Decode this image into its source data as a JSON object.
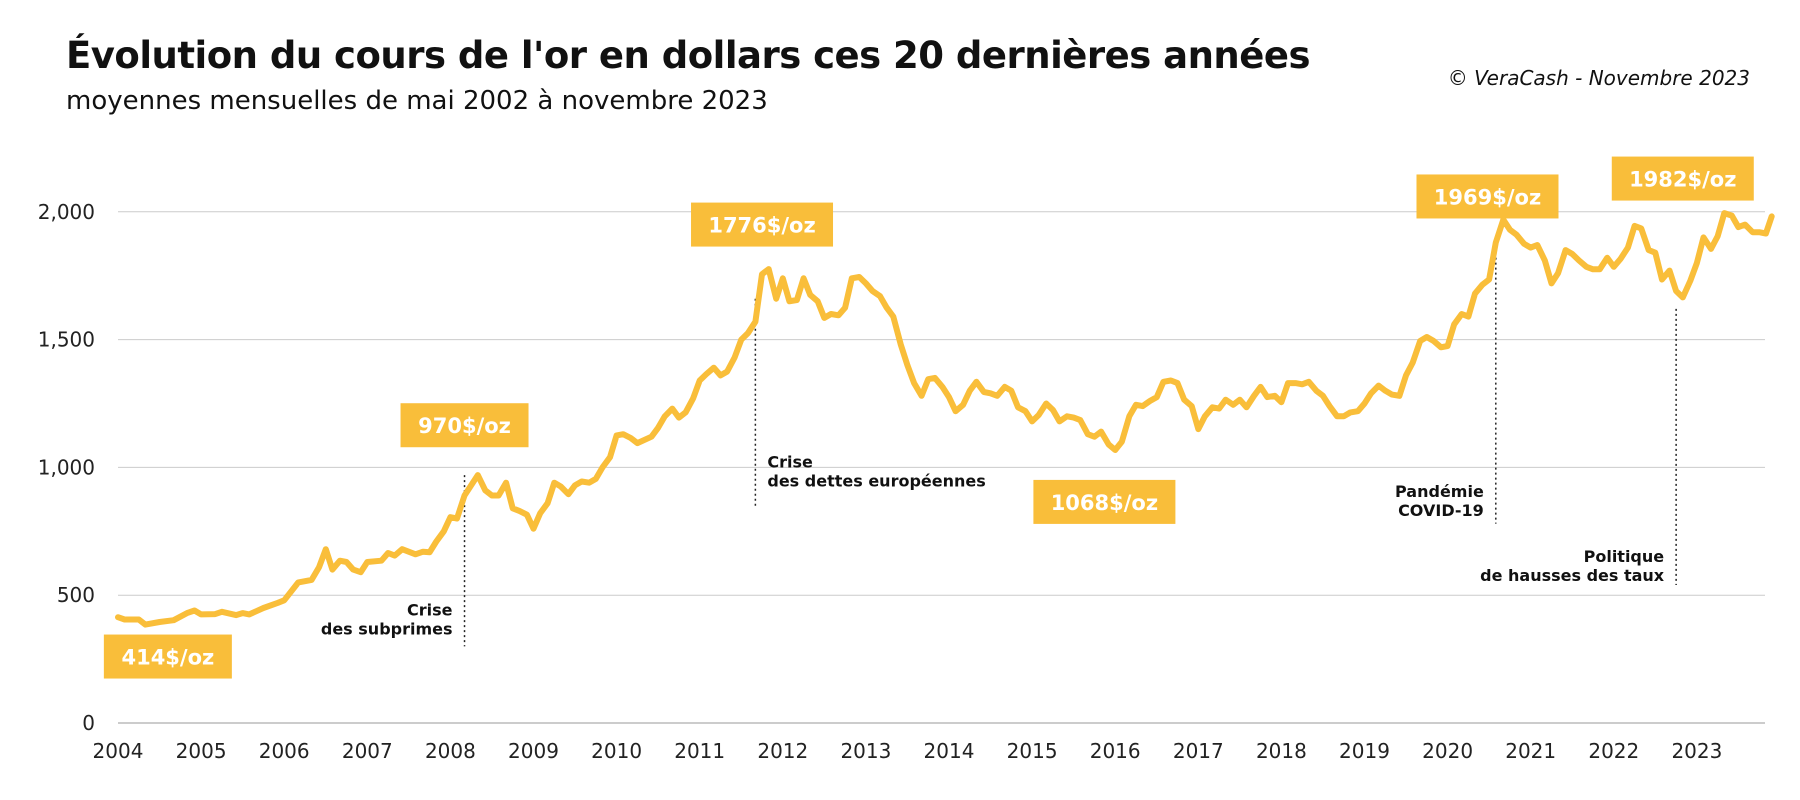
{
  "header": {
    "title": "Évolution du cours de l'or en dollars ces 20 dernières années",
    "subtitle": "moyennes mensuelles de mai 2002 à novembre 2023",
    "credit": "© VeraCash - Novembre 2023"
  },
  "colors": {
    "line": "#F9BE3A",
    "label_bg": "#F9BE3A",
    "grid": "#cccccc"
  },
  "chart_data": {
    "type": "line",
    "title": "Évolution du cours de l'or en dollars ces 20 dernières années",
    "subtitle": "moyennes mensuelles de mai 2002 à novembre 2023",
    "x_range": [
      2004.0,
      2023.9
    ],
    "ylim": [
      0,
      2100
    ],
    "y_ticks": [
      0,
      500,
      1000,
      1500,
      2000
    ],
    "y_tick_labels": [
      "0",
      "500",
      "1,000",
      "1,500",
      "2,000"
    ],
    "x_ticks": [
      2004,
      2005,
      2006,
      2007,
      2008,
      2009,
      2010,
      2011,
      2012,
      2013,
      2014,
      2015,
      2016,
      2017,
      2018,
      2019,
      2020,
      2021,
      2022,
      2023
    ],
    "grid": "horizontal",
    "legend": "none",
    "series": [
      {
        "points": [
          [
            2004.0,
            414
          ],
          [
            2004.08,
            405
          ],
          [
            2004.25,
            405
          ],
          [
            2004.33,
            385
          ],
          [
            2004.5,
            395
          ],
          [
            2004.67,
            402
          ],
          [
            2004.83,
            430
          ],
          [
            2004.92,
            440
          ],
          [
            2005.0,
            425
          ],
          [
            2005.17,
            426
          ],
          [
            2005.25,
            435
          ],
          [
            2005.42,
            422
          ],
          [
            2005.5,
            430
          ],
          [
            2005.58,
            425
          ],
          [
            2005.75,
            450
          ],
          [
            2005.92,
            470
          ],
          [
            2006.0,
            480
          ],
          [
            2006.17,
            550
          ],
          [
            2006.33,
            560
          ],
          [
            2006.42,
            610
          ],
          [
            2006.5,
            680
          ],
          [
            2006.58,
            600
          ],
          [
            2006.67,
            635
          ],
          [
            2006.75,
            630
          ],
          [
            2006.83,
            600
          ],
          [
            2006.92,
            590
          ],
          [
            2007.0,
            630
          ],
          [
            2007.17,
            635
          ],
          [
            2007.25,
            665
          ],
          [
            2007.33,
            655
          ],
          [
            2007.42,
            680
          ],
          [
            2007.58,
            660
          ],
          [
            2007.67,
            670
          ],
          [
            2007.75,
            668
          ],
          [
            2007.83,
            710
          ],
          [
            2007.92,
            750
          ],
          [
            2008.0,
            805
          ],
          [
            2008.08,
            800
          ],
          [
            2008.17,
            890
          ],
          [
            2008.33,
            970
          ],
          [
            2008.42,
            910
          ],
          [
            2008.5,
            890
          ],
          [
            2008.58,
            890
          ],
          [
            2008.67,
            940
          ],
          [
            2008.75,
            840
          ],
          [
            2008.83,
            830
          ],
          [
            2008.92,
            815
          ],
          [
            2009.0,
            760
          ],
          [
            2009.08,
            820
          ],
          [
            2009.17,
            860
          ],
          [
            2009.25,
            940
          ],
          [
            2009.33,
            925
          ],
          [
            2009.42,
            895
          ],
          [
            2009.5,
            930
          ],
          [
            2009.58,
            945
          ],
          [
            2009.67,
            940
          ],
          [
            2009.75,
            955
          ],
          [
            2009.83,
            1000
          ],
          [
            2009.92,
            1040
          ],
          [
            2010.0,
            1125
          ],
          [
            2010.08,
            1130
          ],
          [
            2010.17,
            1115
          ],
          [
            2010.25,
            1095
          ],
          [
            2010.42,
            1120
          ],
          [
            2010.5,
            1155
          ],
          [
            2010.58,
            1200
          ],
          [
            2010.67,
            1230
          ],
          [
            2010.75,
            1195
          ],
          [
            2010.83,
            1215
          ],
          [
            2010.92,
            1270
          ],
          [
            2011.0,
            1340
          ],
          [
            2011.08,
            1365
          ],
          [
            2011.17,
            1390
          ],
          [
            2011.25,
            1360
          ],
          [
            2011.33,
            1375
          ],
          [
            2011.42,
            1430
          ],
          [
            2011.5,
            1500
          ],
          [
            2011.58,
            1525
          ],
          [
            2011.67,
            1570
          ],
          [
            2011.75,
            1756
          ],
          [
            2011.83,
            1776
          ],
          [
            2011.92,
            1660
          ],
          [
            2012.0,
            1740
          ],
          [
            2012.08,
            1650
          ],
          [
            2012.17,
            1655
          ],
          [
            2012.25,
            1740
          ],
          [
            2012.33,
            1675
          ],
          [
            2012.42,
            1650
          ],
          [
            2012.5,
            1585
          ],
          [
            2012.58,
            1600
          ],
          [
            2012.67,
            1595
          ],
          [
            2012.75,
            1625
          ],
          [
            2012.83,
            1740
          ],
          [
            2012.92,
            1745
          ],
          [
            2013.0,
            1720
          ],
          [
            2013.08,
            1690
          ],
          [
            2013.17,
            1670
          ],
          [
            2013.25,
            1625
          ],
          [
            2013.33,
            1590
          ],
          [
            2013.42,
            1480
          ],
          [
            2013.5,
            1400
          ],
          [
            2013.58,
            1330
          ],
          [
            2013.67,
            1280
          ],
          [
            2013.75,
            1345
          ],
          [
            2013.83,
            1350
          ],
          [
            2013.92,
            1315
          ],
          [
            2014.0,
            1275
          ],
          [
            2014.08,
            1220
          ],
          [
            2014.17,
            1245
          ],
          [
            2014.25,
            1300
          ],
          [
            2014.33,
            1335
          ],
          [
            2014.42,
            1295
          ],
          [
            2014.5,
            1290
          ],
          [
            2014.58,
            1280
          ],
          [
            2014.67,
            1315
          ],
          [
            2014.75,
            1300
          ],
          [
            2014.83,
            1235
          ],
          [
            2014.92,
            1220
          ],
          [
            2015.0,
            1180
          ],
          [
            2015.08,
            1205
          ],
          [
            2015.17,
            1250
          ],
          [
            2015.25,
            1225
          ],
          [
            2015.33,
            1180
          ],
          [
            2015.42,
            1200
          ],
          [
            2015.5,
            1195
          ],
          [
            2015.58,
            1185
          ],
          [
            2015.67,
            1130
          ],
          [
            2015.75,
            1120
          ],
          [
            2015.83,
            1140
          ],
          [
            2015.92,
            1090
          ],
          [
            2016.0,
            1068
          ],
          [
            2016.08,
            1100
          ],
          [
            2016.17,
            1200
          ],
          [
            2016.25,
            1245
          ],
          [
            2016.33,
            1240
          ],
          [
            2016.42,
            1260
          ],
          [
            2016.5,
            1275
          ],
          [
            2016.58,
            1335
          ],
          [
            2016.67,
            1340
          ],
          [
            2016.75,
            1330
          ],
          [
            2016.83,
            1265
          ],
          [
            2016.92,
            1240
          ],
          [
            2017.0,
            1150
          ],
          [
            2017.08,
            1200
          ],
          [
            2017.17,
            1235
          ],
          [
            2017.25,
            1230
          ],
          [
            2017.33,
            1265
          ],
          [
            2017.42,
            1245
          ],
          [
            2017.5,
            1265
          ],
          [
            2017.58,
            1235
          ],
          [
            2017.67,
            1280
          ],
          [
            2017.75,
            1315
          ],
          [
            2017.83,
            1275
          ],
          [
            2017.92,
            1280
          ],
          [
            2018.0,
            1255
          ],
          [
            2018.08,
            1330
          ],
          [
            2018.17,
            1330
          ],
          [
            2018.25,
            1325
          ],
          [
            2018.33,
            1335
          ],
          [
            2018.42,
            1300
          ],
          [
            2018.5,
            1280
          ],
          [
            2018.58,
            1240
          ],
          [
            2018.67,
            1200
          ],
          [
            2018.75,
            1200
          ],
          [
            2018.83,
            1215
          ],
          [
            2018.92,
            1220
          ],
          [
            2019.0,
            1250
          ],
          [
            2019.08,
            1290
          ],
          [
            2019.17,
            1320
          ],
          [
            2019.25,
            1300
          ],
          [
            2019.33,
            1285
          ],
          [
            2019.42,
            1280
          ],
          [
            2019.5,
            1360
          ],
          [
            2019.58,
            1410
          ],
          [
            2019.67,
            1495
          ],
          [
            2019.75,
            1510
          ],
          [
            2019.83,
            1495
          ],
          [
            2019.92,
            1470
          ],
          [
            2020.0,
            1475
          ],
          [
            2020.08,
            1560
          ],
          [
            2020.17,
            1600
          ],
          [
            2020.25,
            1590
          ],
          [
            2020.33,
            1680
          ],
          [
            2020.42,
            1715
          ],
          [
            2020.5,
            1735
          ],
          [
            2020.58,
            1880
          ],
          [
            2020.67,
            1969
          ],
          [
            2020.75,
            1930
          ],
          [
            2020.83,
            1910
          ],
          [
            2020.92,
            1875
          ],
          [
            2021.0,
            1860
          ],
          [
            2021.08,
            1870
          ],
          [
            2021.17,
            1810
          ],
          [
            2021.25,
            1720
          ],
          [
            2021.33,
            1760
          ],
          [
            2021.42,
            1850
          ],
          [
            2021.5,
            1835
          ],
          [
            2021.58,
            1810
          ],
          [
            2021.67,
            1785
          ],
          [
            2021.75,
            1775
          ],
          [
            2021.83,
            1775
          ],
          [
            2021.92,
            1820
          ],
          [
            2022.0,
            1785
          ],
          [
            2022.08,
            1815
          ],
          [
            2022.17,
            1860
          ],
          [
            2022.25,
            1945
          ],
          [
            2022.33,
            1935
          ],
          [
            2022.42,
            1850
          ],
          [
            2022.5,
            1840
          ],
          [
            2022.58,
            1735
          ],
          [
            2022.67,
            1770
          ],
          [
            2022.75,
            1690
          ],
          [
            2022.83,
            1665
          ],
          [
            2022.92,
            1730
          ],
          [
            2023.0,
            1800
          ],
          [
            2023.08,
            1900
          ],
          [
            2023.17,
            1855
          ],
          [
            2023.25,
            1905
          ],
          [
            2023.33,
            1995
          ],
          [
            2023.42,
            1985
          ],
          [
            2023.5,
            1940
          ],
          [
            2023.58,
            1950
          ],
          [
            2023.67,
            1920
          ],
          [
            2023.75,
            1920
          ],
          [
            2023.83,
            1915
          ],
          [
            2023.9,
            1982
          ]
        ]
      }
    ],
    "price_labels": [
      {
        "text": "414$/oz",
        "x": 2004.6,
        "y": 260
      },
      {
        "text": "970$/oz",
        "x": 2008.17,
        "y": 1165
      },
      {
        "text": "1776$/oz",
        "x": 2011.75,
        "y": 1950
      },
      {
        "text": "1068$/oz",
        "x": 2015.87,
        "y": 865
      },
      {
        "text": "1969$/oz",
        "x": 2020.48,
        "y": 2060
      },
      {
        "text": "1982$/oz",
        "x": 2022.83,
        "y": 2130
      }
    ],
    "annotations": [
      {
        "lines": [
          "Crise",
          "des subprimes"
        ],
        "x": 2008.17,
        "y_top": 970,
        "y_bottom": 300,
        "align": "right",
        "text_y": 420
      },
      {
        "lines": [
          "Crise",
          "des dettes européennes"
        ],
        "x": 2011.67,
        "y_top": 1660,
        "y_bottom": 850,
        "align": "left",
        "text_y": 1000
      },
      {
        "lines": [
          "Pandémie",
          "COVID-19"
        ],
        "x": 2020.58,
        "y_top": 1860,
        "y_bottom": 780,
        "align": "right",
        "text_y": 885
      },
      {
        "lines": [
          "Politique",
          "de hausses des taux"
        ],
        "x": 2022.75,
        "y_top": 1620,
        "y_bottom": 540,
        "align": "right",
        "text_y": 630
      }
    ]
  }
}
